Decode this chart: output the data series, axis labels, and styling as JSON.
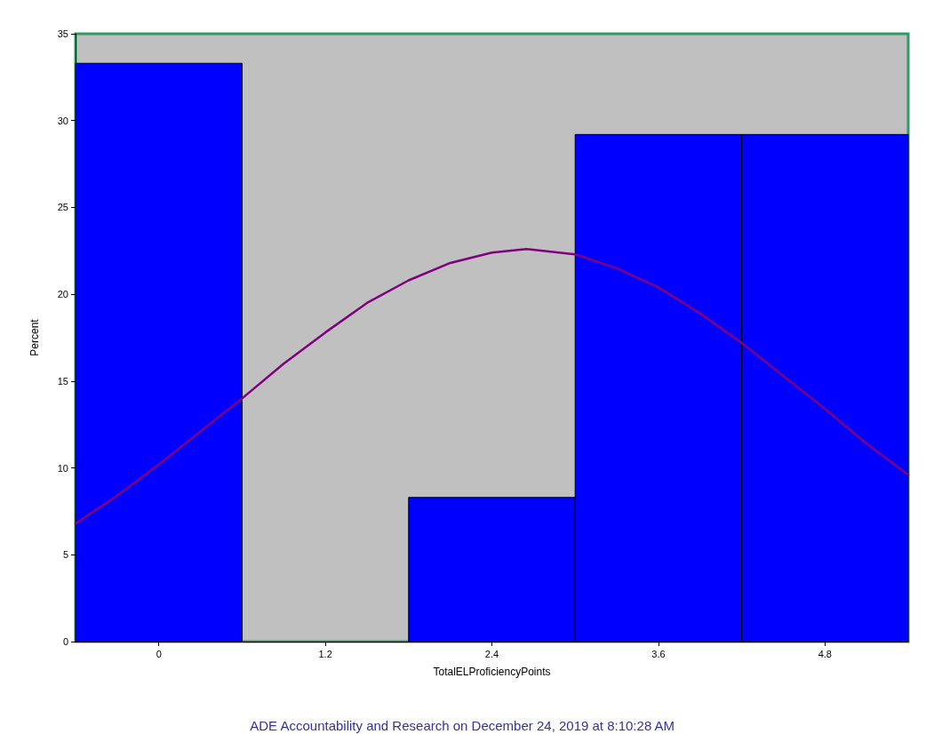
{
  "chart_data": {
    "type": "histogram",
    "xlabel": "TotalELProficiencyPoints",
    "ylabel": "Percent",
    "bins": [
      -0.6,
      0.6,
      1.8,
      3.0,
      4.2,
      5.4
    ],
    "values": [
      33.3,
      0,
      8.3,
      29.2,
      29.2
    ],
    "color": "#0000ff",
    "series": [
      {
        "type": "line",
        "color": "#800080",
        "x": [
          -0.6,
          -0.3,
          0,
          0.3,
          0.6,
          0.9,
          1.2,
          1.5,
          1.8,
          2.1,
          2.4,
          2.65,
          3.0,
          3.3,
          3.6,
          3.9,
          4.2,
          4.5,
          4.8,
          5.1,
          5.4
        ],
        "values": [
          6.8,
          8.4,
          10.2,
          12.1,
          14.0,
          16.0,
          17.8,
          19.5,
          20.8,
          21.8,
          22.4,
          22.6,
          22.3,
          21.5,
          20.4,
          18.9,
          17.2,
          15.3,
          13.4,
          11.4,
          9.6
        ]
      }
    ],
    "xlim": [
      -0.6,
      5.4
    ],
    "xticks": [
      0,
      1.2,
      2.4,
      3.6,
      4.8
    ],
    "ylim": [
      0,
      35
    ],
    "yticks": [
      0,
      5,
      10,
      15,
      20,
      25,
      30,
      35
    ],
    "grid": false,
    "annotations": [
      "ADE Accountability and Research on December 24, 2019 at 8:10:28 AM"
    ]
  }
}
